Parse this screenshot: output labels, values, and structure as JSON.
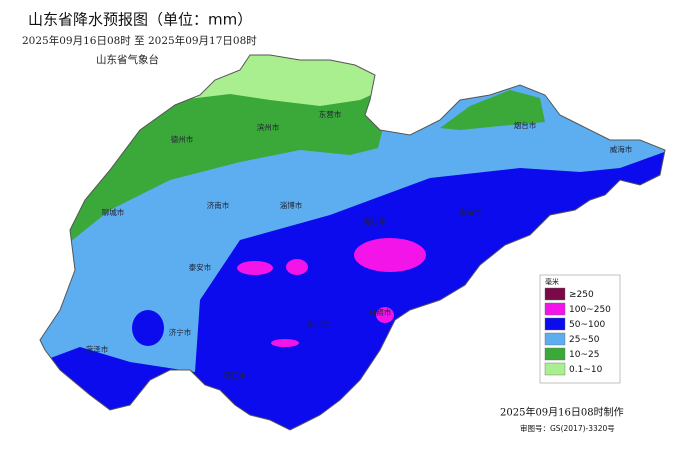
{
  "header": {
    "title": "山东省降水预报图（单位：mm）",
    "period": "2025年09月16日08时  至  2025年09月17日08时",
    "issuer": "山东省气象台"
  },
  "cities": [
    "东营市",
    "滨州市",
    "德州市",
    "烟台市",
    "威海市",
    "聊城市",
    "济南市",
    "淄博市",
    "潍坊市",
    "青岛市",
    "泰安市",
    "济宁市",
    "临沂市",
    "日照市",
    "菏泽市",
    "枣庄市"
  ],
  "legend": {
    "title": "毫米",
    "items": [
      {
        "label": "≥250",
        "color": "#7a0a47"
      },
      {
        "label": "100~250",
        "color": "#f214e8"
      },
      {
        "label": "50~100",
        "color": "#0b0bed"
      },
      {
        "label": "25~50",
        "color": "#5caef0"
      },
      {
        "label": "10~25",
        "color": "#3aa93a"
      },
      {
        "label": "0.1~10",
        "color": "#a9ef8f"
      }
    ]
  },
  "footer": {
    "made": "2025年09月16日08时制作",
    "approval": "审图号：GS(2017)-3320号"
  }
}
